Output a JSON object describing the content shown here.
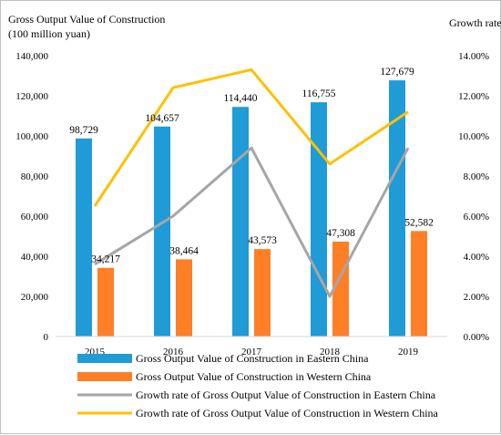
{
  "chart_data": {
    "type": "bar",
    "title_left": [
      "Gross Output Value of Construction",
      "(100 million yuan)"
    ],
    "title_right": "Growth rate",
    "categories": [
      "2015",
      "2016",
      "2017",
      "2018",
      "2019"
    ],
    "y_left": {
      "min": 0,
      "max": 140000,
      "step": 20000,
      "ticks": [
        "0",
        "20,000",
        "40,000",
        "60,000",
        "80,000",
        "100,000",
        "120,000",
        "140,000"
      ]
    },
    "y_right": {
      "min": 0,
      "max": 14,
      "step": 2,
      "ticks": [
        "0.00%",
        "2.00%",
        "4.00%",
        "6.00%",
        "8.00%",
        "10.00%",
        "12.00%",
        "14.00%"
      ]
    },
    "series": [
      {
        "name": "Gross Output Value of Construction in Eastern China",
        "kind": "bar",
        "color": "#1f9bd7",
        "values": [
          98729,
          104657,
          114440,
          116755,
          127679
        ],
        "labels": [
          "98,729",
          "104,657",
          "114,440",
          "116,755",
          "127,679"
        ]
      },
      {
        "name": "Gross Output Value of Construction in Western China",
        "kind": "bar",
        "color": "#ff7f27",
        "values": [
          34217,
          38464,
          43573,
          47308,
          52582
        ],
        "labels": [
          "34,217",
          "38,464",
          "43,573",
          "47,308",
          "52,582"
        ]
      },
      {
        "name": "Growth rate of Gross Output Value of Construction in Eastern China",
        "kind": "line",
        "axis": "right",
        "color": "#a6a6a6",
        "values": [
          3.6,
          6.0,
          9.4,
          2.0,
          9.4
        ]
      },
      {
        "name": "Growth rate of Gross Output Value of Construction in Western China",
        "kind": "line",
        "axis": "right",
        "color": "#ffc000",
        "values": [
          6.5,
          12.4,
          13.3,
          8.6,
          11.2
        ]
      }
    ],
    "grid": false,
    "legend_position": "bottom"
  }
}
